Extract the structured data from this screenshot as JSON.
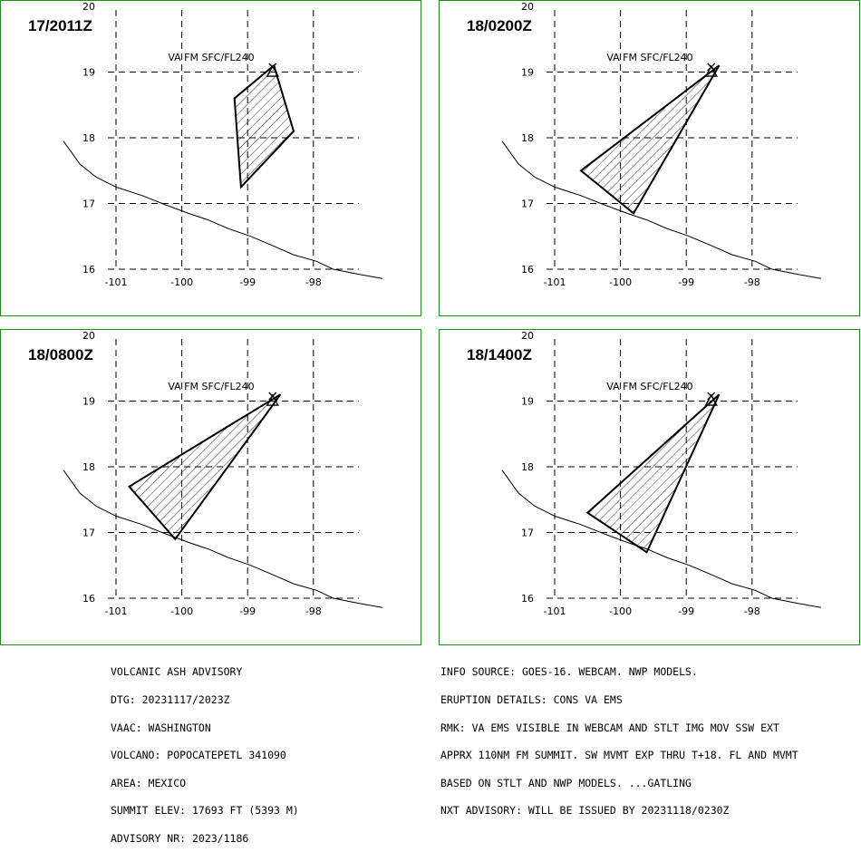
{
  "panels": [
    {
      "time": "17/2011Z",
      "fl": "VA FM SFC/FL240",
      "polygon": [
        [
          -98.6,
          19.1
        ],
        [
          -98.3,
          18.1
        ],
        [
          -99.1,
          17.25
        ],
        [
          -99.2,
          18.6
        ]
      ]
    },
    {
      "time": "18/0200Z",
      "fl": "VA FM SFC/FL240",
      "polygon": [
        [
          -98.5,
          19.1
        ],
        [
          -99.8,
          16.85
        ],
        [
          -100.6,
          17.5
        ]
      ]
    },
    {
      "time": "18/0800Z",
      "fl": "VA FM SFC/FL240",
      "polygon": [
        [
          -98.5,
          19.1
        ],
        [
          -100.1,
          16.9
        ],
        [
          -100.8,
          17.7
        ]
      ]
    },
    {
      "time": "18/1400Z",
      "fl": "VA FM SFC/FL240",
      "polygon": [
        [
          -98.5,
          19.1
        ],
        [
          -99.6,
          16.7
        ],
        [
          -100.5,
          17.3
        ]
      ]
    }
  ],
  "axes": {
    "lat_labels": [
      "16",
      "17",
      "18",
      "19",
      "20"
    ],
    "lon_labels": [
      "-101",
      "-100",
      "-99",
      "-98"
    ]
  },
  "coastline": [
    [
      -101.8,
      17.95
    ],
    [
      -101.55,
      17.6
    ],
    [
      -101.3,
      17.4
    ],
    [
      -101.0,
      17.25
    ],
    [
      -100.6,
      17.12
    ],
    [
      -100.25,
      16.98
    ],
    [
      -99.9,
      16.85
    ],
    [
      -99.6,
      16.75
    ],
    [
      -99.3,
      16.62
    ],
    [
      -98.95,
      16.5
    ],
    [
      -98.6,
      16.35
    ],
    [
      -98.3,
      16.22
    ],
    [
      -97.95,
      16.12
    ],
    [
      -97.7,
      16.0
    ],
    [
      -97.3,
      15.92
    ],
    [
      -96.95,
      15.86
    ]
  ],
  "volcano": {
    "lon": -98.62,
    "lat": 19.02
  },
  "advisory_left": [
    "VOLCANIC ASH ADVISORY",
    "DTG: 20231117/2023Z",
    "VAAC: WASHINGTON",
    "VOLCANO: POPOCATEPETL 341090",
    "AREA: MEXICO",
    "SUMMIT ELEV: 17693 FT (5393 M)",
    "ADVISORY NR: 2023/1186"
  ],
  "advisory_right": [
    "INFO SOURCE: GOES-16. WEBCAM. NWP MODELS.",
    "ERUPTION DETAILS: CONS VA EMS",
    "RMK: VA EMS VISIBLE IN WEBCAM AND STLT IMG MOV SSW EXT",
    "APPRX 110NM FM SUMMIT. SW MVMT EXP THRU T+18. FL AND MVMT",
    "BASED ON STLT AND NWP MODELS. ...GATLING",
    "NXT ADVISORY: WILL BE ISSUED BY 20231118/0230Z"
  ]
}
